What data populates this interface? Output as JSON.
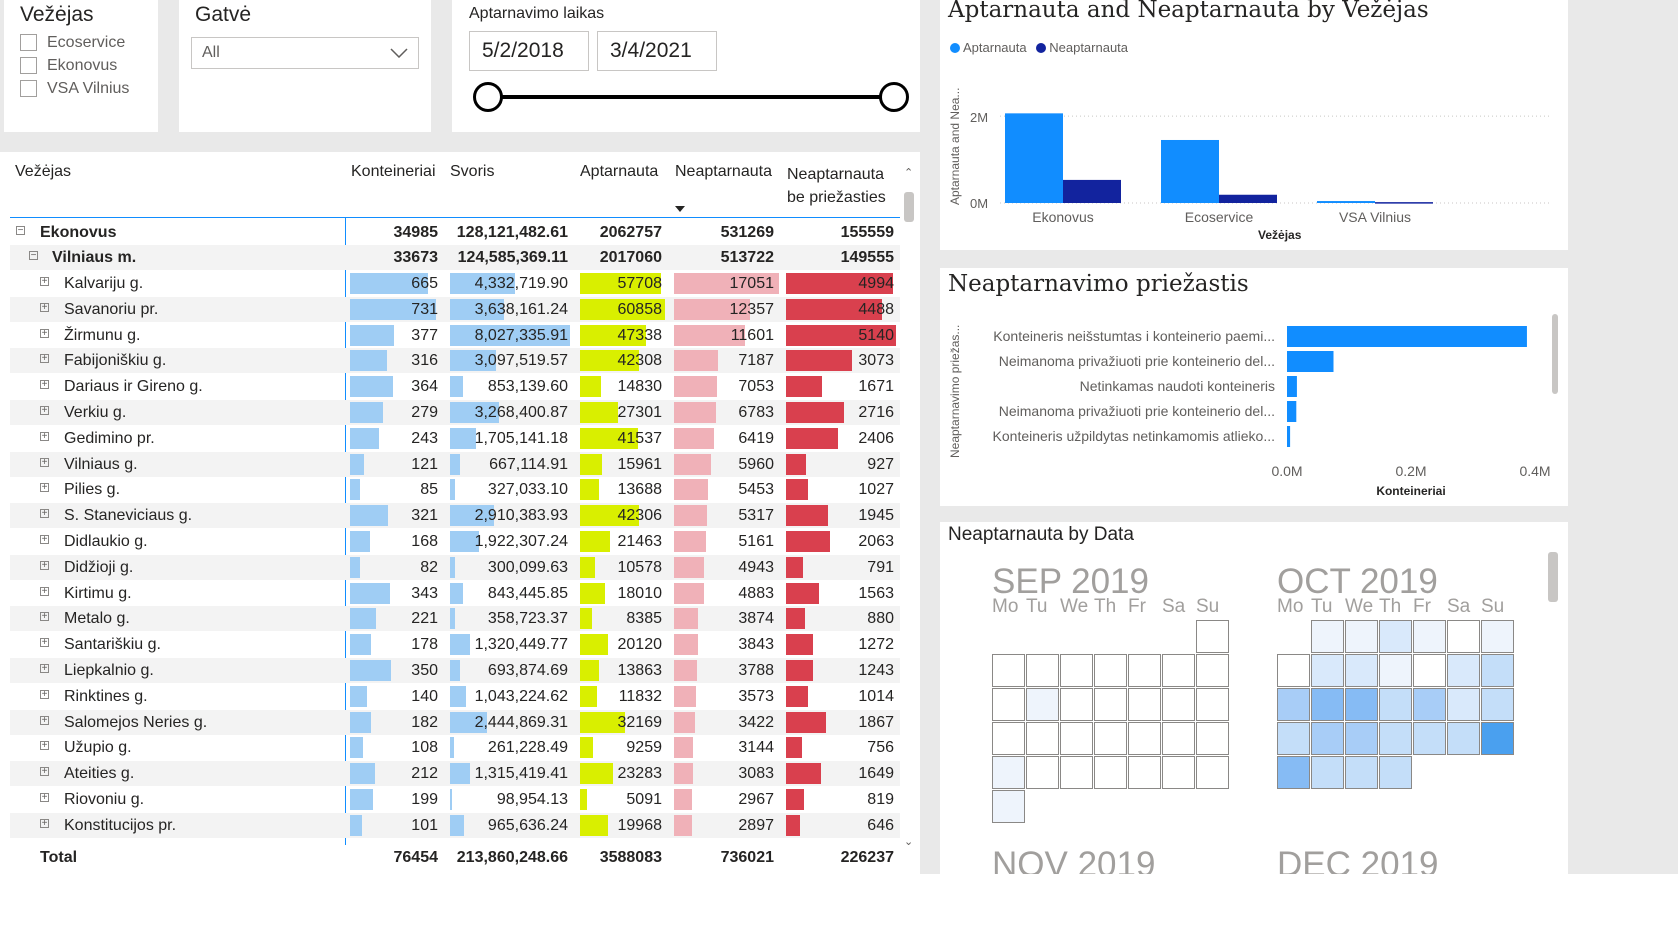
{
  "slicers": {
    "vezejas": {
      "title": "Vežėjas",
      "options": [
        "Ecoservice",
        "Ekonovus",
        "VSA Vilnius"
      ]
    },
    "gatve": {
      "title": "Gatvė",
      "selected": "All"
    },
    "laikas": {
      "title": "Aptarnavimo laikas",
      "start": "5/2/2018",
      "end": "3/4/2021"
    }
  },
  "matrix": {
    "headers": {
      "vezejas": "Vežėjas",
      "konteineriai": "Konteineriai",
      "svoris": "Svoris",
      "aptarnauta": "Aptarnauta",
      "neaptarnauta": "Neaptarnauta",
      "be1": "Neaptarnauta",
      "be2": "be priežasties"
    },
    "group1": {
      "name": "Ekonovus",
      "k": "34985",
      "s": "128,121,482.61",
      "a": "2062757",
      "n": "531269",
      "b": "155559"
    },
    "group2": {
      "name": "Vilniaus m.",
      "k": "33673",
      "s": "124,585,369.11",
      "a": "2017060",
      "n": "513722",
      "b": "149555"
    },
    "rows": [
      {
        "name": "Kalvariju g.",
        "k": 665,
        "s": "4,332,719.90",
        "sv": 4332719.9,
        "a": 57708,
        "n": 17051,
        "b": 4994
      },
      {
        "name": "Savanoriu pr.",
        "k": 731,
        "s": "3,638,161.24",
        "sv": 3638161.24,
        "a": 60858,
        "n": 12357,
        "b": 4488
      },
      {
        "name": "Žirmunu g.",
        "k": 377,
        "s": "8,027,335.91",
        "sv": 8027335.91,
        "a": 47338,
        "n": 11601,
        "b": 5140
      },
      {
        "name": "Fabijoniškiu g.",
        "k": 316,
        "s": "3,097,519.57",
        "sv": 3097519.57,
        "a": 42308,
        "n": 7187,
        "b": 3073
      },
      {
        "name": "Dariaus ir Gireno g.",
        "k": 364,
        "s": "853,139.60",
        "sv": 853139.6,
        "a": 14830,
        "n": 7053,
        "b": 1671
      },
      {
        "name": "Verkiu g.",
        "k": 279,
        "s": "3,268,400.87",
        "sv": 3268400.87,
        "a": 27301,
        "n": 6783,
        "b": 2716
      },
      {
        "name": "Gedimino pr.",
        "k": 243,
        "s": "1,705,141.18",
        "sv": 1705141.18,
        "a": 41537,
        "n": 6419,
        "b": 2406
      },
      {
        "name": "Vilniaus g.",
        "k": 121,
        "s": "667,114.91",
        "sv": 667114.91,
        "a": 15961,
        "n": 5960,
        "b": 927
      },
      {
        "name": "Pilies g.",
        "k": 85,
        "s": "327,033.10",
        "sv": 327033.1,
        "a": 13688,
        "n": 5453,
        "b": 1027
      },
      {
        "name": "S. Staneviciaus g.",
        "k": 321,
        "s": "2,910,383.93",
        "sv": 2910383.93,
        "a": 42306,
        "n": 5317,
        "b": 1945
      },
      {
        "name": "Didlaukio g.",
        "k": 168,
        "s": "1,922,307.24",
        "sv": 1922307.24,
        "a": 21463,
        "n": 5161,
        "b": 2063
      },
      {
        "name": "Didžioji g.",
        "k": 82,
        "s": "300,099.63",
        "sv": 300099.63,
        "a": 10578,
        "n": 4943,
        "b": 791
      },
      {
        "name": "Kirtimu g.",
        "k": 343,
        "s": "843,445.85",
        "sv": 843445.85,
        "a": 18010,
        "n": 4883,
        "b": 1563
      },
      {
        "name": "Metalo g.",
        "k": 221,
        "s": "358,723.37",
        "sv": 358723.37,
        "a": 8385,
        "n": 3874,
        "b": 880
      },
      {
        "name": "Santariškiu g.",
        "k": 178,
        "s": "1,320,449.77",
        "sv": 1320449.77,
        "a": 20120,
        "n": 3843,
        "b": 1272
      },
      {
        "name": "Liepkalnio g.",
        "k": 350,
        "s": "693,874.69",
        "sv": 693874.69,
        "a": 13863,
        "n": 3788,
        "b": 1243
      },
      {
        "name": "Rinktines g.",
        "k": 140,
        "s": "1,043,224.62",
        "sv": 1043224.62,
        "a": 11832,
        "n": 3573,
        "b": 1014
      },
      {
        "name": "Salomejos Neries g.",
        "k": 182,
        "s": "2,444,869.31",
        "sv": 2444869.31,
        "a": 32169,
        "n": 3422,
        "b": 1867
      },
      {
        "name": "Užupio g.",
        "k": 108,
        "s": "261,228.49",
        "sv": 261228.49,
        "a": 9259,
        "n": 3144,
        "b": 756
      },
      {
        "name": "Ateities g.",
        "k": 212,
        "s": "1,315,419.41",
        "sv": 1315419.41,
        "a": 23283,
        "n": 3083,
        "b": 1649
      },
      {
        "name": "Riovoniu g.",
        "k": 199,
        "s": "98,954.13",
        "sv": 98954.13,
        "a": 5091,
        "n": 2967,
        "b": 819
      },
      {
        "name": "Konstitucijos pr.",
        "k": 101,
        "s": "965,636.24",
        "sv": 965636.24,
        "a": 19968,
        "n": 2897,
        "b": 646
      }
    ],
    "total": {
      "label": "Total",
      "k": "76454",
      "s": "213,860,248.66",
      "a": "3588083",
      "n": "736021",
      "b": "226237"
    }
  },
  "colors": {
    "k": "#9fcdf4",
    "s": "#9fcdf4",
    "a": "#d9ef00",
    "n": "#f0b1b8",
    "b": "#d9404e"
  },
  "chart1": {
    "title": "Aptarnauta and Neaptarnauta by Vežėjas",
    "legend": [
      "Aptarnauta",
      "Neaptarnauta"
    ],
    "ylabel": "Aptarnauta and Nea...",
    "xlabel": "Vežėjas",
    "ticks": [
      "2M",
      "0M"
    ]
  },
  "chart2": {
    "title": "Neaptarnavimo priežastis",
    "ylabel": "Neaptarnavimo priežas...",
    "xlabel": "Konteineriai",
    "ticks": [
      "0.0M",
      "0.2M",
      "0.4M"
    ]
  },
  "chart3": {
    "title": "Neaptarnauta by Data",
    "months": [
      "SEP 2019",
      "OCT 2019",
      "NOV 2019",
      "DEC 2019"
    ],
    "weekdays": [
      "Mo",
      "Tu",
      "We",
      "Th",
      "Fr",
      "Sa",
      "Su"
    ]
  },
  "chart_data": [
    {
      "type": "bar",
      "title": "Aptarnauta and Neaptarnauta by Vežėjas",
      "xlabel": "Vežėjas",
      "ylabel": "Aptarnauta and Nea...",
      "categories": [
        "Ekonovus",
        "Ecoservice",
        "VSA Vilnius"
      ],
      "series": [
        {
          "name": "Aptarnauta",
          "values": [
            2062757,
            1450000,
            45000
          ],
          "color": "#118dff"
        },
        {
          "name": "Neaptarnauta",
          "values": [
            531269,
            190000,
            20000
          ],
          "color": "#12239e"
        }
      ],
      "ylim": [
        0,
        2600000
      ],
      "legend": "top-left"
    },
    {
      "type": "bar",
      "orientation": "horizontal",
      "title": "Neaptarnavimo priežastis",
      "xlabel": "Konteineriai",
      "ylabel": "Neaptarnavimo priežas...",
      "categories": [
        "Konteineris neišstumtas i konteinerio paemi...",
        "Neimanoma privažiuoti prie konteinerio del...",
        "Netinkamas naudoti konteineris",
        "Neimanoma privažiuoti prie konteinerio del...",
        "Konteineris užpildytas netinkamomis atlieko..."
      ],
      "values": [
        387000,
        75000,
        16000,
        15000,
        5000
      ],
      "xlim": [
        0,
        400000
      ],
      "color": "#118dff"
    }
  ]
}
